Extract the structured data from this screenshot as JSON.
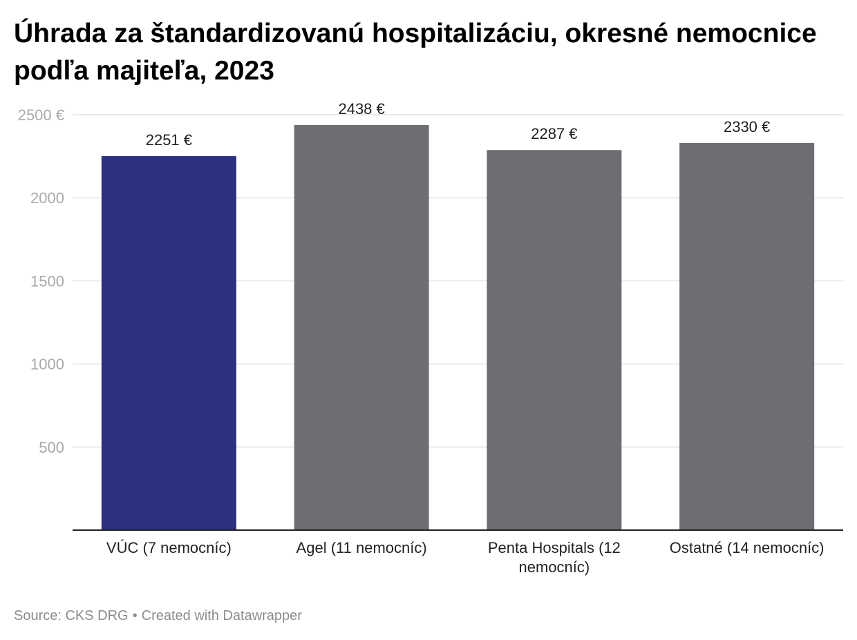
{
  "title": "Úhrada za štandardizovanú hospitalizáciu, okresné nemocnice podľa majiteľa, 2023",
  "footer": {
    "source": "Source: CKS DRG",
    "separator": "•",
    "credit": "Created with Datawrapper"
  },
  "chart_data": {
    "type": "bar",
    "title": "Úhrada za štandardizovanú hospitalizáciu, okresné nemocnice podľa majiteľa, 2023",
    "categories": [
      "VÚC (7 nemocníc)",
      "Agel (11 nemocníc)",
      "Penta Hospitals (12 nemocníc)",
      "Ostatné (14 nemocníc)"
    ],
    "category_lines": [
      [
        "VÚC (7 nemocníc)"
      ],
      [
        "Agel (11 nemocníc)"
      ],
      [
        "Penta Hospitals (12",
        "nemocníc)"
      ],
      [
        "Ostatné (14 nemocníc)"
      ]
    ],
    "values": [
      2251,
      2438,
      2287,
      2330
    ],
    "value_labels": [
      "2251 €",
      "2438 €",
      "2287 €",
      "2330 €"
    ],
    "colors": [
      "#2d3080",
      "#6d6e71",
      "#6d6e71",
      "#6d6e71"
    ],
    "yticks": [
      500,
      1000,
      1500,
      2000,
      2500
    ],
    "ytick_labels": [
      "500",
      "1000",
      "1500",
      "2000",
      "2500 €"
    ],
    "ylim": [
      0,
      2500
    ],
    "xlabel": "",
    "ylabel": "",
    "grid": true
  }
}
